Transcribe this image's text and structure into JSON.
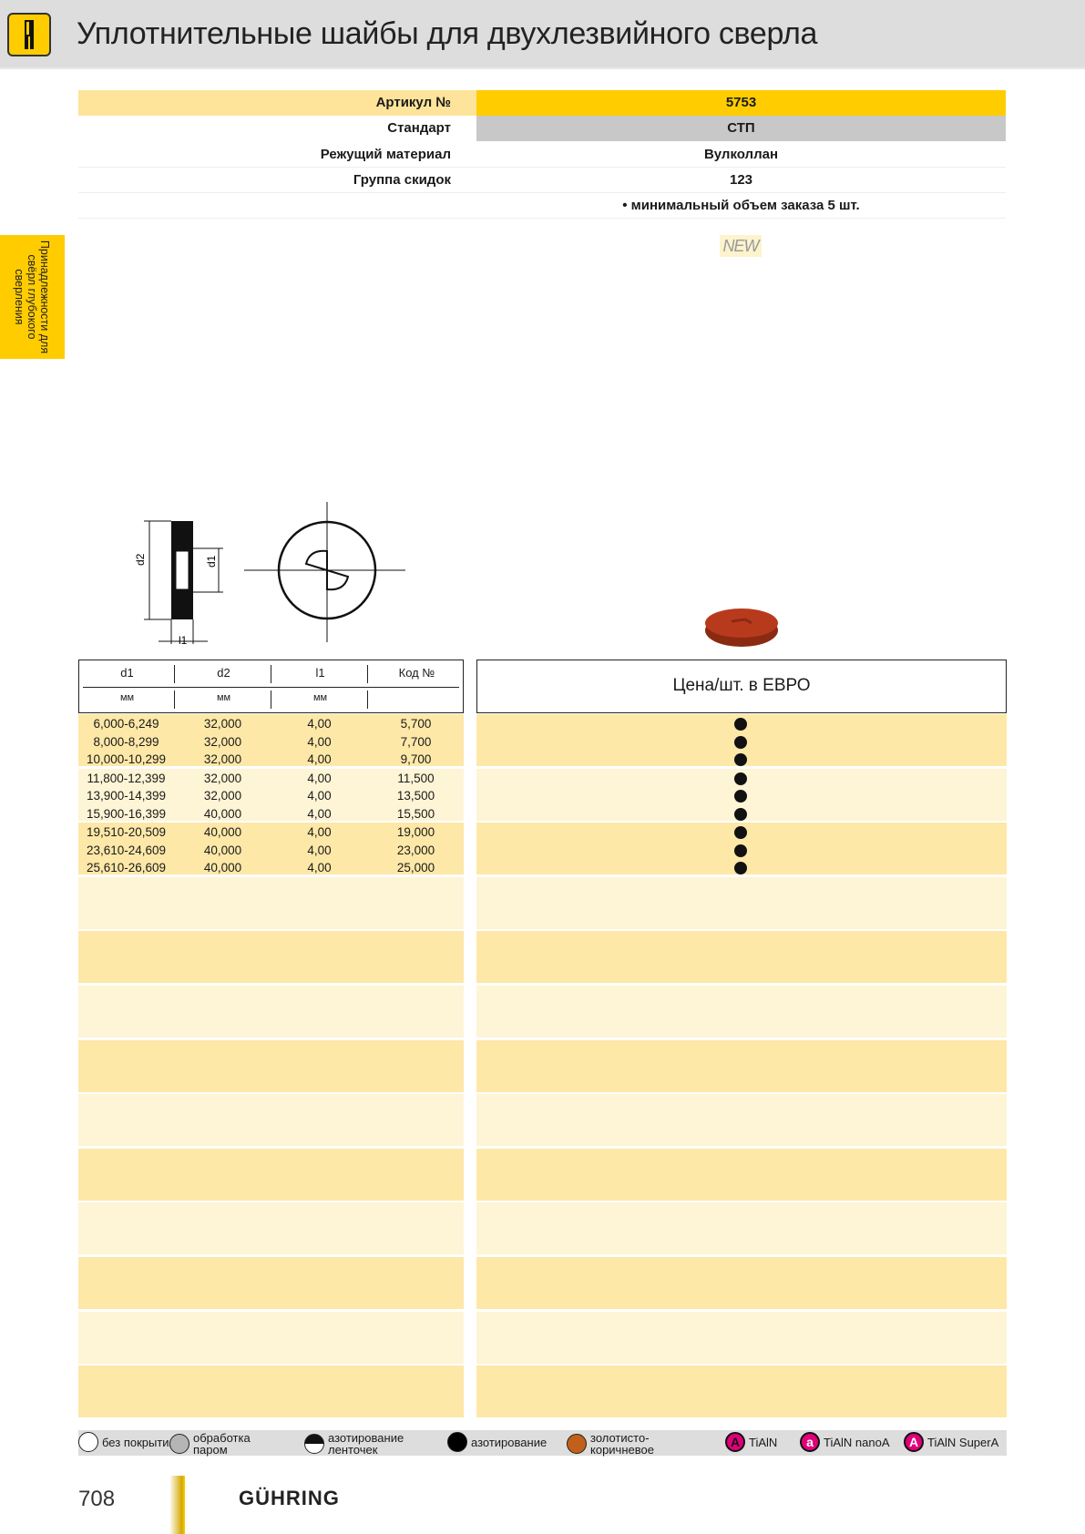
{
  "header": {
    "title": "Уплотнительные шайбы для двухлезвийного сверла",
    "logo_icon": "drill-holder-icon"
  },
  "side_tab": {
    "label": "Принадлежности для свёрл глубокого сверления"
  },
  "info": [
    {
      "label": "Артикул №",
      "value": "5753"
    },
    {
      "label": "Стандарт",
      "value": "СТП"
    },
    {
      "label": "Режущий материал",
      "value": "Вулколлан"
    },
    {
      "label": "Группа скидок",
      "value": "123"
    },
    {
      "label": "",
      "value": "• минимальный объем заказа 5 шт."
    }
  ],
  "badge": "NEW",
  "drawing": {
    "labels": [
      "d2",
      "d1",
      "l1"
    ]
  },
  "table": {
    "headers": [
      "d1",
      "d2",
      "l1",
      "Код №"
    ],
    "units": [
      "мм",
      "мм",
      "мм",
      ""
    ],
    "price_header": "Цена/шт. в ЕВРО",
    "rows": [
      [
        "6,000-6,249",
        "32,000",
        "4,00",
        "5,700"
      ],
      [
        "8,000-8,299",
        "32,000",
        "4,00",
        "7,700"
      ],
      [
        "10,000-10,299",
        "32,000",
        "4,00",
        "9,700"
      ],
      [
        "11,800-12,399",
        "32,000",
        "4,00",
        "11,500"
      ],
      [
        "13,900-14,399",
        "32,000",
        "4,00",
        "13,500"
      ],
      [
        "15,900-16,399",
        "40,000",
        "4,00",
        "15,500"
      ],
      [
        "19,510-20,509",
        "40,000",
        "4,00",
        "19,000"
      ],
      [
        "23,610-24,609",
        "40,000",
        "4,00",
        "23,000"
      ],
      [
        "25,610-26,609",
        "40,000",
        "4,00",
        "25,000"
      ]
    ],
    "availability_icon": "black-dot-icon"
  },
  "legend": [
    {
      "label": "без покрытия",
      "color": "#ffffff"
    },
    {
      "label": "обработка паром",
      "color": "#b5b5b5"
    },
    {
      "label": "азотирование ленточек",
      "color": "half"
    },
    {
      "label": "азотирование",
      "color": "#000000"
    },
    {
      "label": "золотисто-коричневое",
      "color": "#c0601a"
    },
    {
      "label": "TiAlN",
      "letter": "A",
      "color": "#e0007a"
    },
    {
      "label": "TiAlN nanoA",
      "letter": "a",
      "color": "#e0007a"
    },
    {
      "label": "TiAlN SuperA",
      "letter": "A",
      "color": "#e0007a"
    }
  ],
  "footer": {
    "page": "708",
    "brand": "GÜHRING"
  },
  "colors": {
    "accent": "#ffcc00",
    "row_dark": "#fde8a8",
    "row_light": "#fef4d6",
    "header_bg": "#dcdddc"
  }
}
